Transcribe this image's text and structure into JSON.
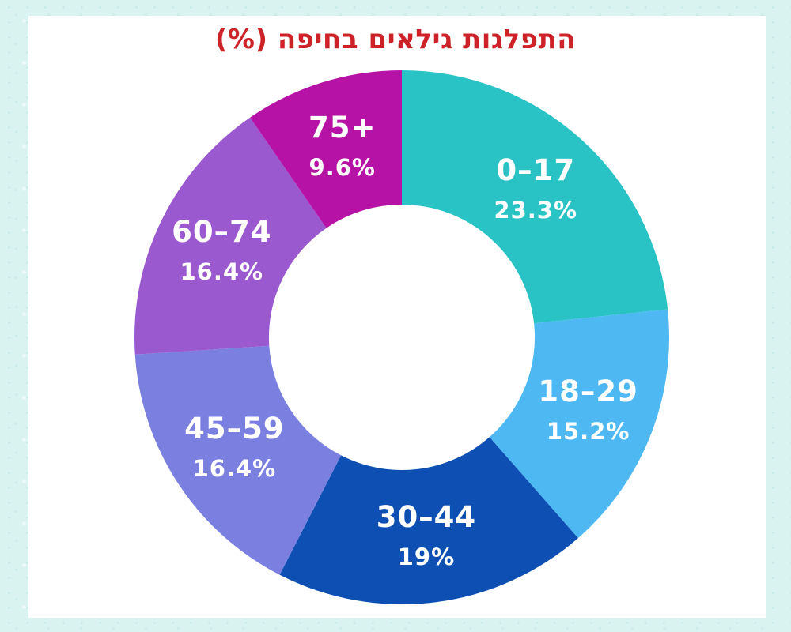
{
  "chart_data": {
    "type": "pie",
    "style": "donut",
    "title": "התפלגות גילאים  בחיפה (%)",
    "title_color": "#cd2328",
    "unit": "%",
    "start_angle_deg": 0,
    "direction": "clockwise",
    "legend": "none",
    "labels_position": "inside",
    "segments": [
      {
        "label": "0–17",
        "value": 23.3,
        "display": "23.3%",
        "color": "#29c3c5"
      },
      {
        "label": "18–29",
        "value": 15.2,
        "display": "15.2%",
        "color": "#4eb8f2"
      },
      {
        "label": "30–44",
        "value": 19,
        "display": "19%",
        "color": "#0d4fb2"
      },
      {
        "label": "45–59",
        "value": 16.4,
        "display": "16.4%",
        "color": "#7b80e0"
      },
      {
        "label": "60–74",
        "value": 16.4,
        "display": "16.4%",
        "color": "#9b59cf"
      },
      {
        "label": "75+",
        "value": 9.6,
        "display": "9.6%",
        "color": "#b712a6"
      }
    ]
  },
  "colors": {
    "background_frame": "#d9f3f0",
    "panel": "#ffffff",
    "label_text": "#ffffff"
  }
}
